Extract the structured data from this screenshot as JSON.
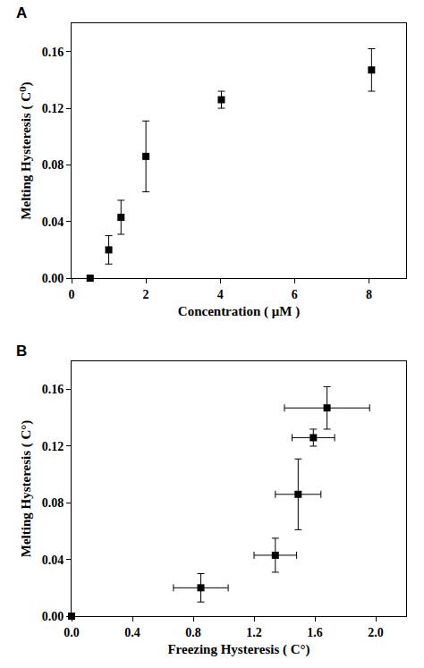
{
  "chart_data": [
    {
      "type": "scatter",
      "title": "A",
      "x_label": "Concentration ( μM )",
      "y_label": "Melting Hysteresis ( C⁰)",
      "x": [
        0.5,
        1,
        1.33,
        2,
        4.03,
        8.07
      ],
      "values": [
        0,
        0.02,
        0.043,
        0.086,
        0.126,
        0.147
      ],
      "y_error": [
        0,
        0.01,
        0.012,
        0.025,
        0.006,
        0.015
      ],
      "color": "#000000",
      "marker": "square",
      "grid": false,
      "xlim": [
        0,
        9
      ],
      "xticks": [
        0,
        2,
        4,
        6,
        8
      ],
      "ylim": [
        0,
        0.18
      ],
      "yticks": [
        {
          "value": 0,
          "label": "0.00"
        },
        {
          "value": 0.04,
          "label": "0.04"
        },
        {
          "value": 0.08,
          "label": "0.08"
        },
        {
          "value": 0.12,
          "label": "0.12"
        },
        {
          "value": 0.16,
          "label": "0.16"
        }
      ]
    },
    {
      "type": "scatter",
      "title": "B",
      "x_label": "Freezing Hysteresis ( C°)",
      "y_label": "Melting Hysteresis ( C°)",
      "x": [
        0,
        0.85,
        1.34,
        1.49,
        1.59,
        1.68
      ],
      "x_error": [
        0,
        0.18,
        0.14,
        0.15,
        0.14,
        0.28
      ],
      "values": [
        0,
        0.02,
        0.043,
        0.086,
        0.126,
        0.147
      ],
      "y_error": [
        0,
        0.01,
        0.012,
        0.025,
        0.006,
        0.015
      ],
      "color": "#000000",
      "marker": "square",
      "grid": false,
      "xlim": [
        0,
        2.2
      ],
      "xticks": [
        {
          "value": 0,
          "label": "0.0"
        },
        {
          "value": 0.4,
          "label": "0.4"
        },
        {
          "value": 0.8,
          "label": "0.8"
        },
        {
          "value": 1.2,
          "label": "1.2"
        },
        {
          "value": 1.6,
          "label": "1.6"
        },
        {
          "value": 2.0,
          "label": "2.0"
        }
      ],
      "ylim": [
        0,
        0.18
      ],
      "yticks": [
        {
          "value": 0,
          "label": "0.00"
        },
        {
          "value": 0.04,
          "label": "0.04"
        },
        {
          "value": 0.08,
          "label": "0.08"
        },
        {
          "value": 0.12,
          "label": "0.12"
        },
        {
          "value": 0.16,
          "label": "0.16"
        }
      ]
    }
  ]
}
